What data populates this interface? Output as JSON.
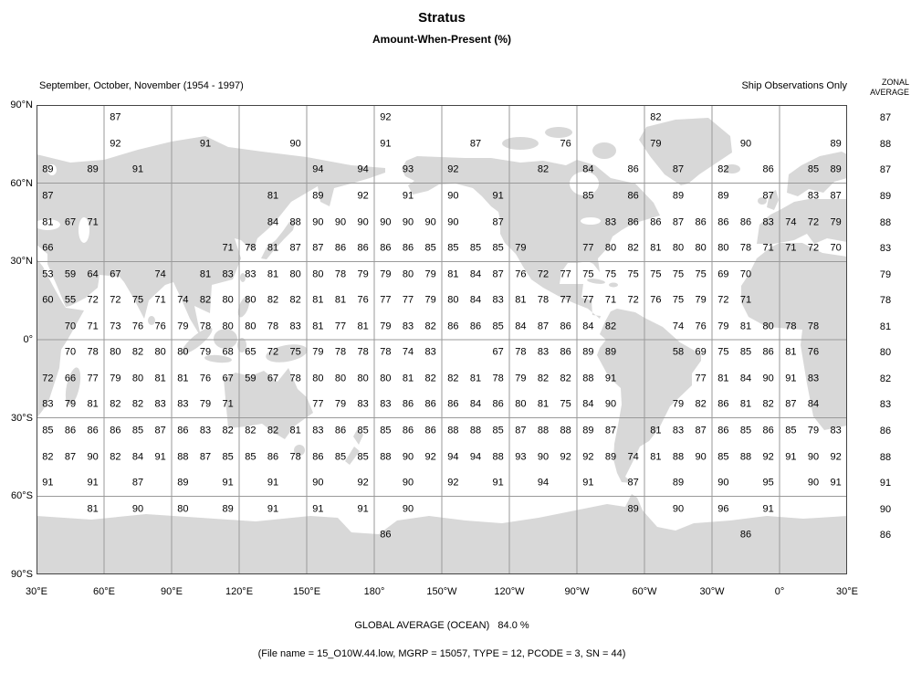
{
  "header": {
    "title": "Stratus",
    "subtitle": "Amount-When-Present (%)",
    "period": "September, October, November (1954 - 1997)",
    "source": "Ship Observations Only",
    "zonal_line1": "ZONAL",
    "zonal_line2": "AVERAGE"
  },
  "axes": {
    "lat_labels": [
      "90°N",
      "60°N",
      "30°N",
      "0°",
      "30°S",
      "60°S",
      "90°S"
    ],
    "lon_labels": [
      "30°E",
      "60°E",
      "90°E",
      "120°E",
      "150°E",
      "180°",
      "150°W",
      "120°W",
      "90°W",
      "60°W",
      "30°W",
      "0°",
      "30°E"
    ]
  },
  "footer": {
    "global_average": "GLOBAL AVERAGE (OCEAN)   84.0 %",
    "file_info": "(File name = 15_O10W.44.low, MGRP = 15057, TYPE = 12, PCODE = 3, SN = 44)"
  },
  "colors": {
    "land": "#d8d8d8",
    "grid": "#9a9a9a",
    "border": "#444444",
    "text": "#000000"
  },
  "chart_data": {
    "type": "heatmap",
    "title": "Stratus",
    "subtitle": "Amount-When-Present (%)",
    "season": "September, October, November (1954 - 1997)",
    "source": "Ship Observations Only",
    "units": "%",
    "projection": "equirectangular, longitude starts at 30°E and wraps east to 30°E",
    "cell_size_deg": 10,
    "lat_band_labels": [
      "85N",
      "75N",
      "65N",
      "55N",
      "45N",
      "35N",
      "25N",
      "15N",
      "5N",
      "5S",
      "15S",
      "25S",
      "35S",
      "45S",
      "55S",
      "65S",
      "75S",
      "85S"
    ],
    "rows": [
      [
        null,
        null,
        null,
        87,
        null,
        null,
        null,
        null,
        null,
        null,
        null,
        null,
        null,
        null,
        null,
        92,
        null,
        null,
        null,
        null,
        null,
        null,
        null,
        null,
        null,
        null,
        null,
        82,
        null,
        null,
        null,
        null,
        null,
        null,
        null,
        null
      ],
      [
        null,
        null,
        null,
        92,
        null,
        null,
        null,
        91,
        null,
        null,
        null,
        90,
        null,
        null,
        null,
        91,
        null,
        null,
        null,
        87,
        null,
        null,
        null,
        76,
        null,
        null,
        null,
        79,
        null,
        null,
        null,
        90,
        null,
        null,
        null,
        89
      ],
      [
        89,
        null,
        89,
        null,
        91,
        null,
        null,
        null,
        null,
        null,
        null,
        null,
        94,
        null,
        94,
        null,
        93,
        null,
        92,
        null,
        null,
        null,
        82,
        null,
        84,
        null,
        86,
        null,
        87,
        null,
        82,
        null,
        86,
        null,
        85,
        89
      ],
      [
        87,
        null,
        null,
        null,
        null,
        null,
        null,
        null,
        null,
        null,
        81,
        null,
        89,
        null,
        92,
        null,
        91,
        null,
        90,
        null,
        91,
        null,
        null,
        null,
        85,
        null,
        86,
        null,
        89,
        null,
        89,
        null,
        87,
        null,
        83,
        87
      ],
      [
        81,
        67,
        71,
        null,
        null,
        null,
        null,
        null,
        null,
        null,
        84,
        88,
        90,
        90,
        90,
        90,
        90,
        90,
        90,
        null,
        87,
        null,
        null,
        null,
        null,
        83,
        86,
        86,
        87,
        86,
        86,
        86,
        83,
        74,
        72,
        79
      ],
      [
        66,
        null,
        null,
        null,
        null,
        null,
        null,
        null,
        71,
        78,
        81,
        87,
        87,
        86,
        86,
        86,
        86,
        85,
        85,
        85,
        85,
        79,
        null,
        null,
        77,
        80,
        82,
        81,
        80,
        80,
        80,
        78,
        71,
        71,
        72,
        70
      ],
      [
        53,
        59,
        64,
        67,
        null,
        74,
        null,
        81,
        83,
        83,
        81,
        80,
        80,
        78,
        79,
        79,
        80,
        79,
        81,
        84,
        87,
        76,
        72,
        77,
        75,
        75,
        75,
        75,
        75,
        75,
        69,
        70,
        null,
        null,
        null,
        null
      ],
      [
        60,
        55,
        72,
        72,
        75,
        71,
        74,
        82,
        80,
        80,
        82,
        82,
        81,
        81,
        76,
        77,
        77,
        79,
        80,
        84,
        83,
        81,
        78,
        77,
        77,
        71,
        72,
        76,
        75,
        79,
        72,
        71,
        null,
        null,
        null,
        null
      ],
      [
        null,
        70,
        71,
        73,
        76,
        76,
        79,
        78,
        80,
        80,
        78,
        83,
        81,
        77,
        81,
        79,
        83,
        82,
        86,
        86,
        85,
        84,
        87,
        86,
        84,
        82,
        null,
        null,
        74,
        76,
        79,
        81,
        80,
        78,
        78,
        null
      ],
      [
        null,
        70,
        78,
        80,
        82,
        80,
        80,
        79,
        68,
        65,
        72,
        75,
        79,
        78,
        78,
        78,
        74,
        83,
        null,
        null,
        67,
        78,
        83,
        86,
        89,
        89,
        null,
        null,
        58,
        69,
        75,
        85,
        86,
        81,
        76,
        null
      ],
      [
        72,
        66,
        77,
        79,
        80,
        81,
        81,
        76,
        67,
        59,
        67,
        78,
        80,
        80,
        80,
        80,
        81,
        82,
        82,
        81,
        78,
        79,
        82,
        82,
        88,
        91,
        null,
        null,
        null,
        77,
        81,
        84,
        90,
        91,
        83,
        null
      ],
      [
        83,
        79,
        81,
        82,
        82,
        83,
        83,
        79,
        71,
        null,
        null,
        null,
        77,
        79,
        83,
        83,
        86,
        86,
        86,
        84,
        86,
        80,
        81,
        75,
        84,
        90,
        null,
        null,
        79,
        82,
        86,
        81,
        82,
        87,
        84,
        null
      ],
      [
        85,
        86,
        86,
        86,
        85,
        87,
        86,
        83,
        82,
        82,
        82,
        81,
        83,
        86,
        85,
        85,
        86,
        86,
        88,
        88,
        85,
        87,
        88,
        88,
        89,
        87,
        null,
        81,
        83,
        87,
        86,
        85,
        86,
        85,
        79,
        83
      ],
      [
        82,
        87,
        90,
        82,
        84,
        91,
        88,
        87,
        85,
        85,
        86,
        78,
        86,
        85,
        85,
        88,
        90,
        92,
        94,
        94,
        88,
        93,
        90,
        92,
        92,
        89,
        74,
        81,
        88,
        90,
        85,
        88,
        92,
        91,
        90,
        92
      ],
      [
        91,
        null,
        91,
        null,
        87,
        null,
        89,
        null,
        91,
        null,
        91,
        null,
        90,
        null,
        92,
        null,
        90,
        null,
        92,
        null,
        91,
        null,
        94,
        null,
        91,
        null,
        87,
        null,
        89,
        null,
        90,
        null,
        95,
        null,
        90,
        91
      ],
      [
        null,
        null,
        81,
        null,
        90,
        null,
        80,
        null,
        89,
        null,
        91,
        null,
        91,
        null,
        91,
        null,
        90,
        null,
        null,
        null,
        null,
        null,
        null,
        null,
        null,
        null,
        89,
        null,
        90,
        null,
        96,
        null,
        91,
        null,
        null,
        null
      ],
      [
        null,
        null,
        null,
        null,
        null,
        null,
        null,
        null,
        null,
        null,
        null,
        null,
        null,
        null,
        null,
        86,
        null,
        null,
        null,
        null,
        null,
        null,
        null,
        null,
        null,
        null,
        null,
        null,
        null,
        null,
        null,
        86,
        null,
        null,
        null,
        null
      ],
      [
        null,
        null,
        null,
        null,
        null,
        null,
        null,
        null,
        null,
        null,
        null,
        null,
        null,
        null,
        null,
        null,
        null,
        null,
        null,
        null,
        null,
        null,
        null,
        null,
        null,
        null,
        null,
        null,
        null,
        null,
        null,
        null,
        null,
        null,
        null,
        null
      ]
    ],
    "zonal_averages": [
      87,
      88,
      87,
      89,
      88,
      83,
      79,
      78,
      81,
      80,
      82,
      83,
      86,
      88,
      91,
      90,
      86,
      null
    ],
    "global_average_ocean_pct": 84.0
  }
}
